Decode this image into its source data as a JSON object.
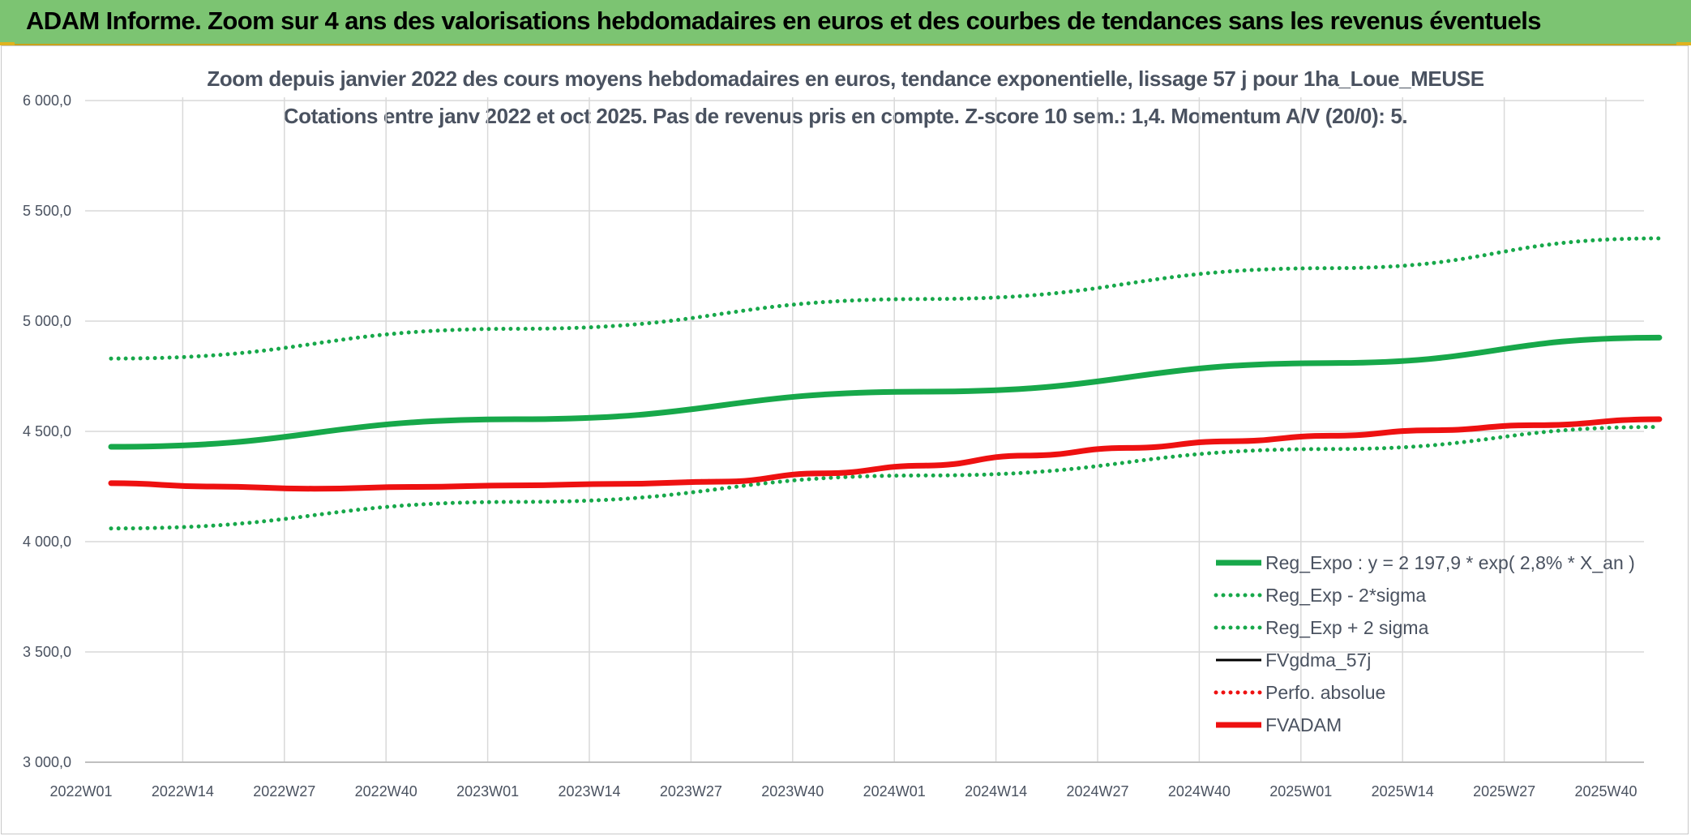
{
  "banner": {
    "title": "ADAM Informe. Zoom sur 4 ans des valorisations hebdomadaires en euros et des courbes de tendances sans les revenus éventuels"
  },
  "colors": {
    "banner_bg": "#7cc472",
    "trend_green": "#17a84a",
    "series_red": "#ee1111",
    "series_black": "#000000"
  },
  "chart_data": {
    "type": "line",
    "title_line1": "Zoom depuis janvier 2022 des cours moyens hebdomadaires en euros, tendance exponentielle, lissage 57 j pour 1ha_Loue_MEUSE",
    "title_line2": "Cotations entre janv 2022 et oct 2025. Pas de revenus pris en compte. Z-score 10 sem.: 1,4. Momentum A/V (20/0): 5.",
    "x_tick_labels": [
      "2022W01",
      "2022W14",
      "2022W27",
      "2022W40",
      "2023W01",
      "2023W14",
      "2023W27",
      "2023W40",
      "2024W01",
      "2024W14",
      "2024W27",
      "2024W40",
      "2025W01",
      "2025W14",
      "2025W27",
      "2025W40"
    ],
    "x_range_weeks": [
      0,
      198
    ],
    "y_tick_labels": [
      "3 000,0",
      "3 500,0",
      "4 000,0",
      "4 500,0",
      "5 000,0",
      "5 500,0",
      "6 000,0"
    ],
    "ylim": [
      3000,
      6000
    ],
    "grid": true,
    "legend_position": "bottom-right",
    "series": [
      {
        "name": "Reg_Expo : y = 2 197,9 * exp( 2,8% *  X_an )",
        "style": "solid-thick",
        "color": "#17a84a",
        "x": [
          0,
          52,
          104,
          156,
          198
        ],
        "y": [
          4430,
          4555,
          4680,
          4810,
          4925
        ]
      },
      {
        "name": "Reg_Exp - 2*sigma",
        "style": "dotted",
        "color": "#17a84a",
        "x": [
          0,
          52,
          104,
          156,
          198
        ],
        "y": [
          4060,
          4180,
          4300,
          4420,
          4520
        ]
      },
      {
        "name": "Reg_Exp + 2 sigma",
        "style": "dotted",
        "color": "#17a84a",
        "x": [
          0,
          52,
          104,
          156,
          198
        ],
        "y": [
          4830,
          4965,
          5100,
          5240,
          5375
        ]
      },
      {
        "name": "FVgdma_57j",
        "style": "solid",
        "color": "#000000",
        "x": [
          0,
          13,
          26,
          39,
          52,
          65,
          78,
          91,
          104,
          117,
          130,
          143,
          156,
          169,
          182,
          198
        ],
        "y": [
          4265,
          4250,
          4240,
          4248,
          4255,
          4262,
          4275,
          4310,
          4345,
          4390,
          4425,
          4455,
          4480,
          4505,
          4528,
          4555
        ]
      },
      {
        "name": "Perfo. absolue",
        "style": "dotted",
        "color": "#ee1111",
        "x": [
          0,
          13,
          26,
          39,
          52,
          65,
          78,
          91,
          104,
          117,
          130,
          143,
          156,
          169,
          182,
          198
        ],
        "y": [
          4265,
          4250,
          4240,
          4248,
          4255,
          4262,
          4275,
          4310,
          4345,
          4390,
          4425,
          4455,
          4480,
          4505,
          4528,
          4555
        ]
      },
      {
        "name": "FVADAM",
        "style": "solid-thick",
        "color": "#ee1111",
        "x": [
          0,
          13,
          26,
          39,
          52,
          65,
          78,
          91,
          104,
          117,
          130,
          143,
          156,
          169,
          182,
          198
        ],
        "y": [
          4265,
          4250,
          4240,
          4248,
          4255,
          4262,
          4272,
          4310,
          4345,
          4390,
          4425,
          4455,
          4480,
          4505,
          4528,
          4555
        ]
      }
    ]
  }
}
